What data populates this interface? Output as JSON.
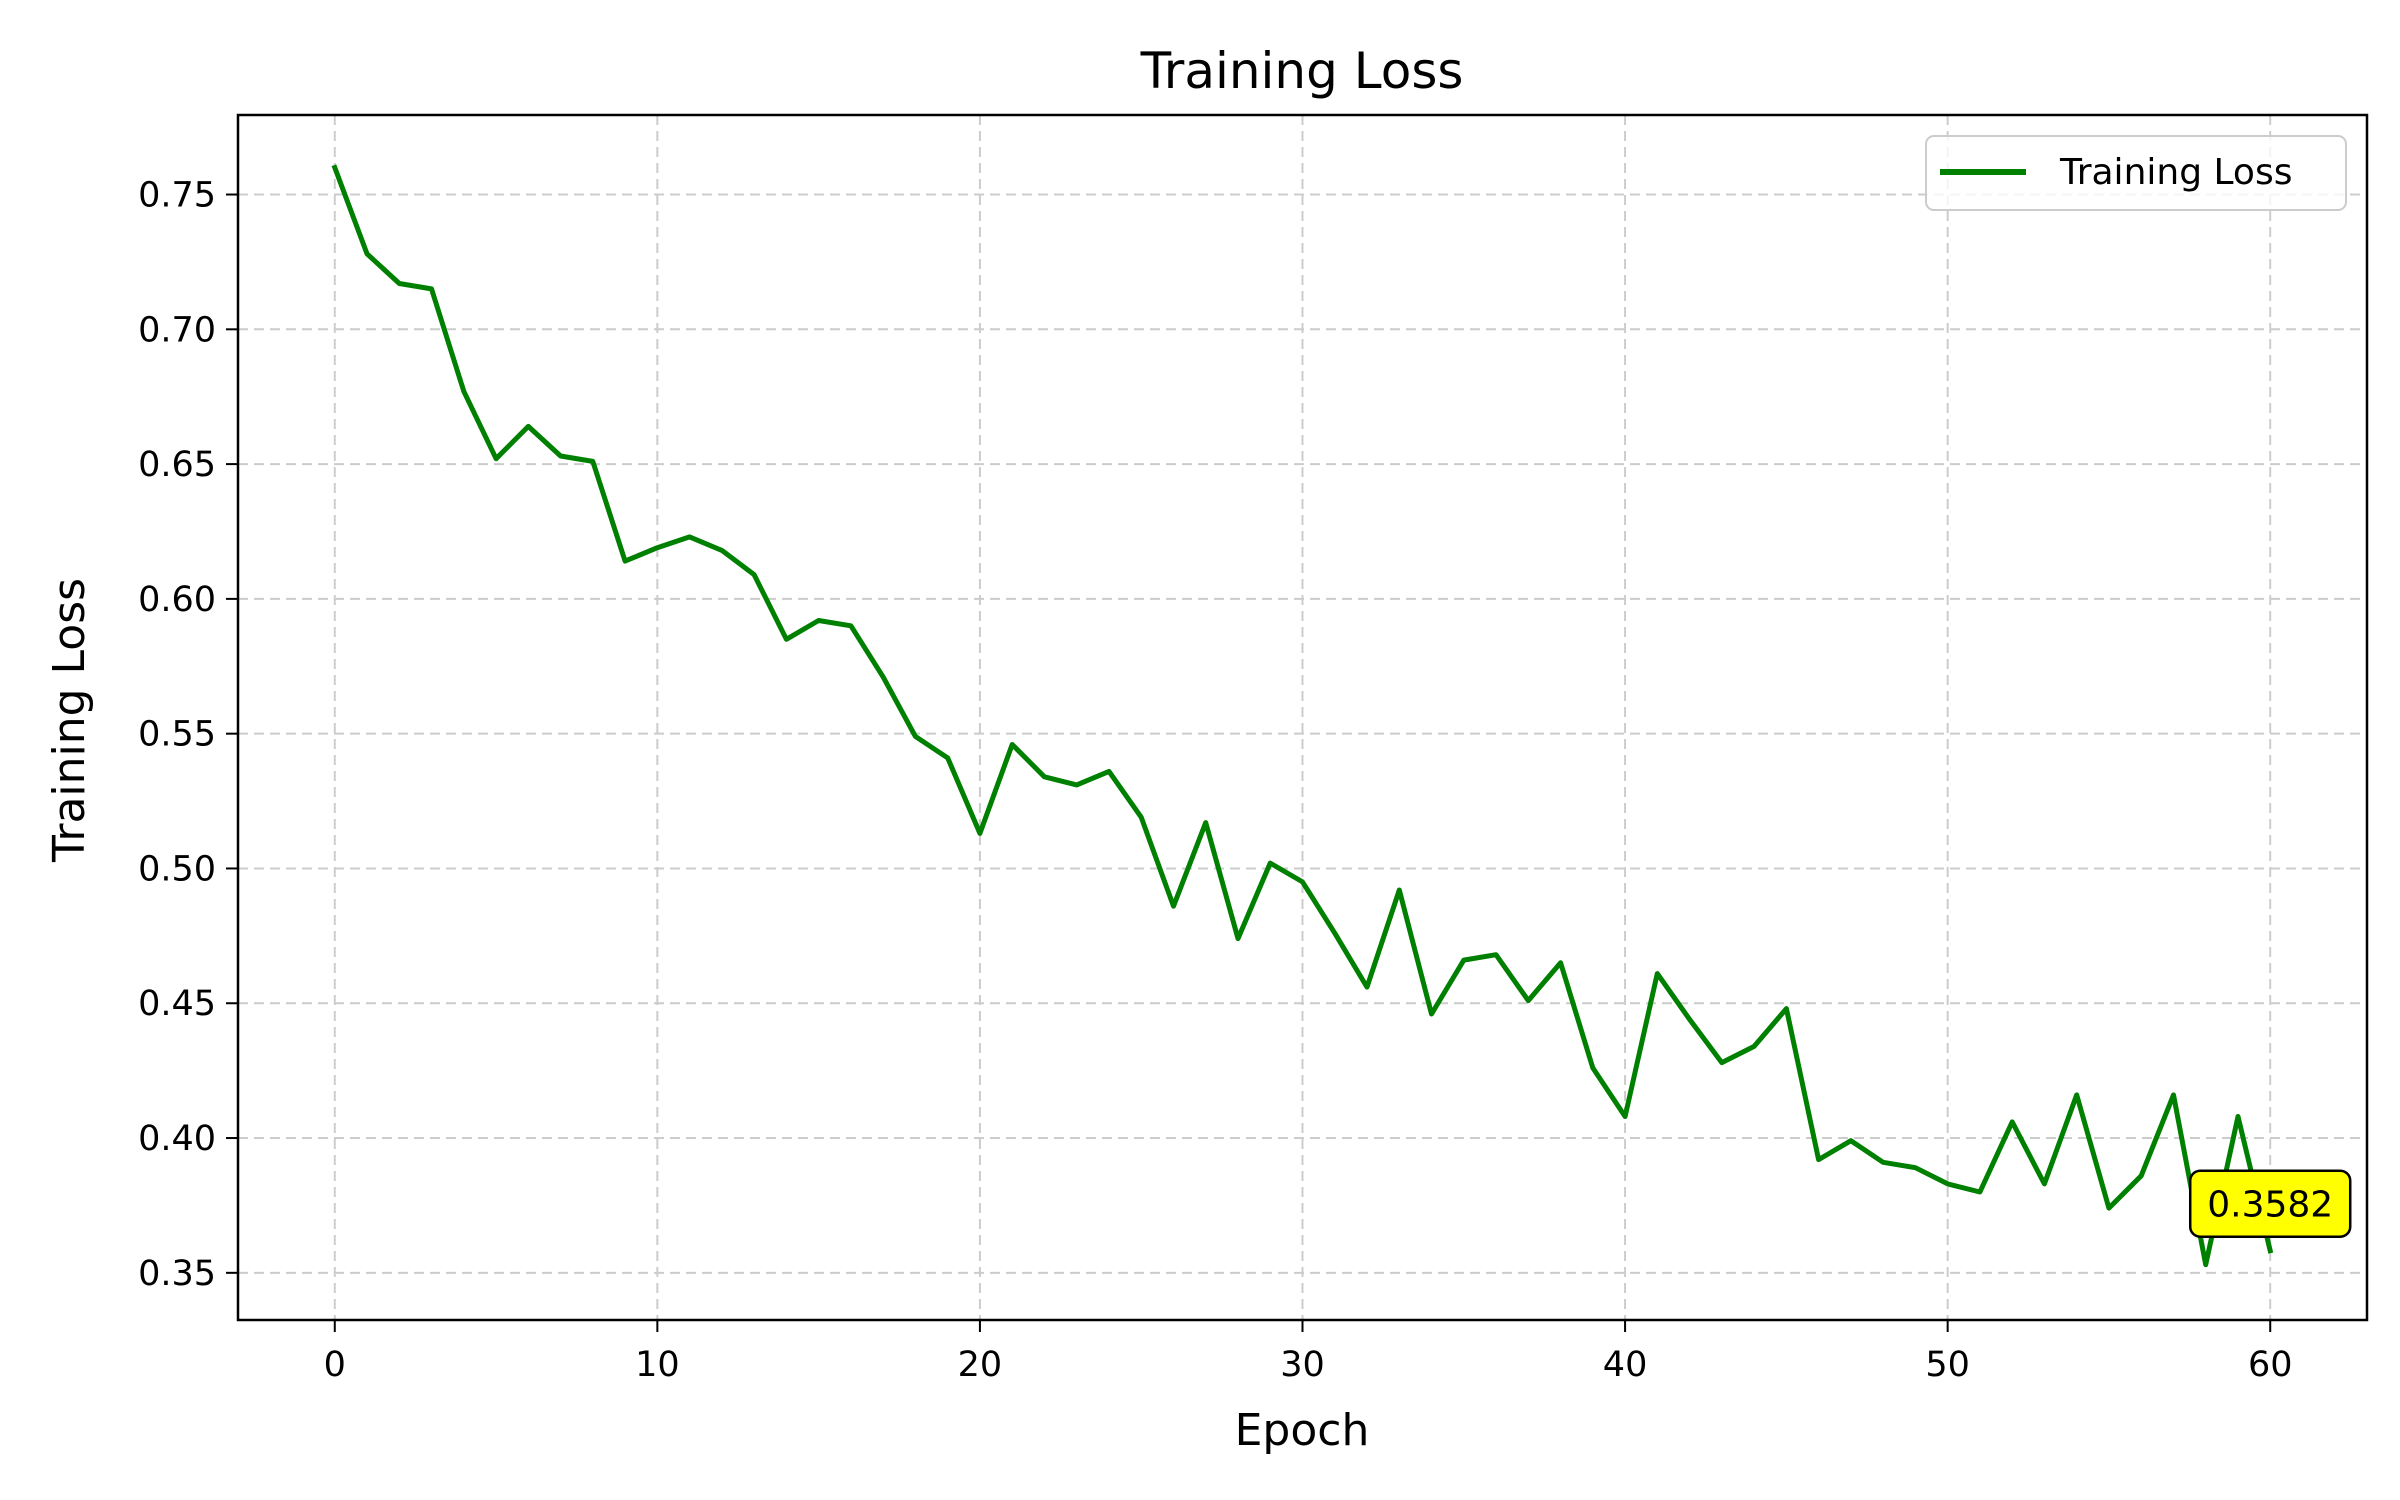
{
  "chart_data": {
    "type": "line",
    "title": "Training Loss",
    "xlabel": "Epoch",
    "ylabel": "Training Loss",
    "xlim": [
      -3,
      63
    ],
    "ylim": [
      0.3325,
      0.7795
    ],
    "xticks": [
      0,
      10,
      20,
      30,
      40,
      50,
      60
    ],
    "xtick_labels": [
      "0",
      "10",
      "20",
      "30",
      "40",
      "50",
      "60"
    ],
    "yticks": [
      0.35,
      0.4,
      0.45,
      0.5,
      0.55,
      0.6,
      0.65,
      0.7,
      0.75
    ],
    "ytick_labels": [
      "0.35",
      "0.40",
      "0.45",
      "0.50",
      "0.55",
      "0.60",
      "0.65",
      "0.70",
      "0.75"
    ],
    "grid": true,
    "legend_position": "top-right",
    "series": [
      {
        "name": "Training Loss",
        "color": "#008000",
        "x": [
          0,
          1,
          2,
          3,
          4,
          5,
          6,
          7,
          8,
          9,
          10,
          11,
          12,
          13,
          14,
          15,
          16,
          17,
          18,
          19,
          20,
          21,
          22,
          23,
          24,
          25,
          26,
          27,
          28,
          29,
          30,
          31,
          32,
          33,
          34,
          35,
          36,
          37,
          38,
          39,
          40,
          41,
          42,
          43,
          44,
          45,
          46,
          47,
          48,
          49,
          50,
          51,
          52,
          53,
          54,
          55,
          56,
          57,
          58,
          59,
          60
        ],
        "y": [
          0.76,
          0.728,
          0.717,
          0.715,
          0.677,
          0.652,
          0.664,
          0.653,
          0.651,
          0.614,
          0.619,
          0.623,
          0.618,
          0.609,
          0.585,
          0.592,
          0.59,
          0.571,
          0.549,
          0.541,
          0.513,
          0.546,
          0.534,
          0.531,
          0.536,
          0.519,
          0.486,
          0.517,
          0.474,
          0.502,
          0.495,
          0.476,
          0.456,
          0.492,
          0.446,
          0.466,
          0.468,
          0.451,
          0.465,
          0.426,
          0.408,
          0.461,
          0.444,
          0.428,
          0.434,
          0.448,
          0.392,
          0.399,
          0.391,
          0.389,
          0.383,
          0.38,
          0.406,
          0.383,
          0.416,
          0.374,
          0.386,
          0.416,
          0.353,
          0.408,
          0.3582
        ]
      }
    ],
    "annotation": {
      "text": "0.3582",
      "x": 60,
      "y": 0.3582,
      "background": "#ffff00"
    }
  }
}
